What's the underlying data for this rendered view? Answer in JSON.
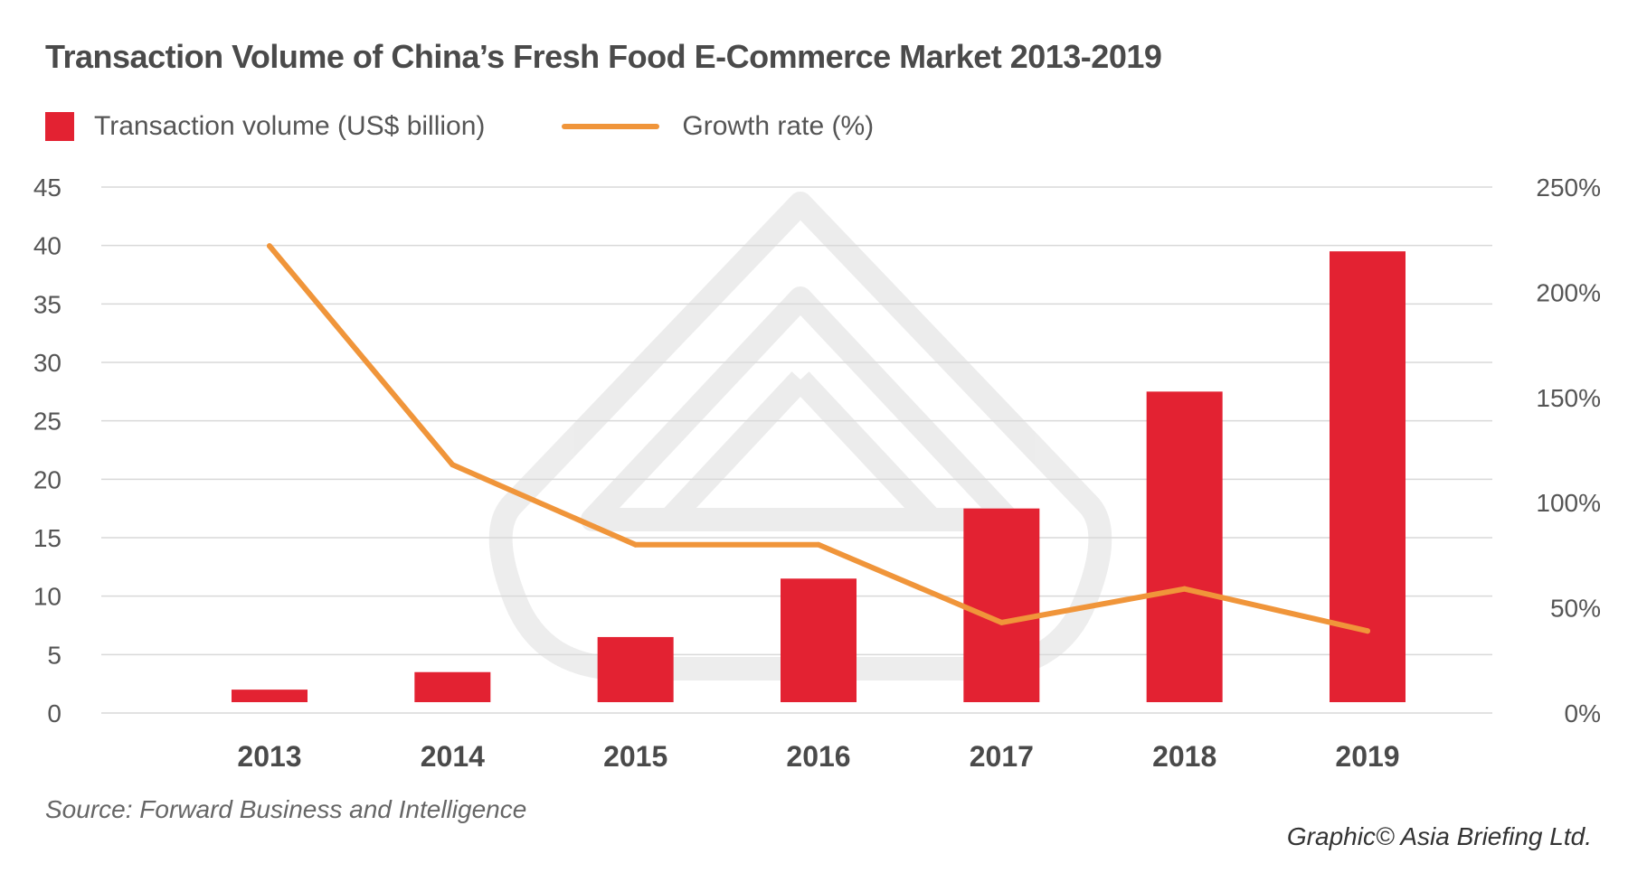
{
  "title": "Transaction Volume of China’s Fresh Food E-Commerce Market 2013-2019",
  "source": "Source: Forward Business and Intelligence",
  "credit": "Graphic© Asia Briefing Ltd.",
  "colors": {
    "bar": "#e32232",
    "line": "#f0953a",
    "grid": "#d9d9d9",
    "tick": "#555555"
  },
  "chart_data": {
    "type": "bar",
    "categories": [
      "2013",
      "2014",
      "2015",
      "2016",
      "2017",
      "2018",
      "2019"
    ],
    "series": [
      {
        "name": "Transaction volume (US$ billion)",
        "type": "bar",
        "axis": "left",
        "values": [
          2.0,
          3.5,
          6.5,
          11.5,
          17.5,
          27.5,
          39.5
        ]
      },
      {
        "name": "Growth rate (%)",
        "type": "line",
        "axis": "right",
        "values": [
          222,
          118,
          80,
          80,
          43,
          59,
          39
        ]
      }
    ],
    "y_left": {
      "min": 0,
      "max": 45,
      "ticks": [
        "0",
        "5",
        "10",
        "15",
        "20",
        "25",
        "30",
        "35",
        "40",
        "45"
      ]
    },
    "y_right": {
      "min": 0,
      "max": 250,
      "ticks": [
        "0%",
        "50%",
        "100%",
        "150%",
        "200%",
        "250%"
      ]
    },
    "grid": true,
    "legend": "top-left"
  }
}
